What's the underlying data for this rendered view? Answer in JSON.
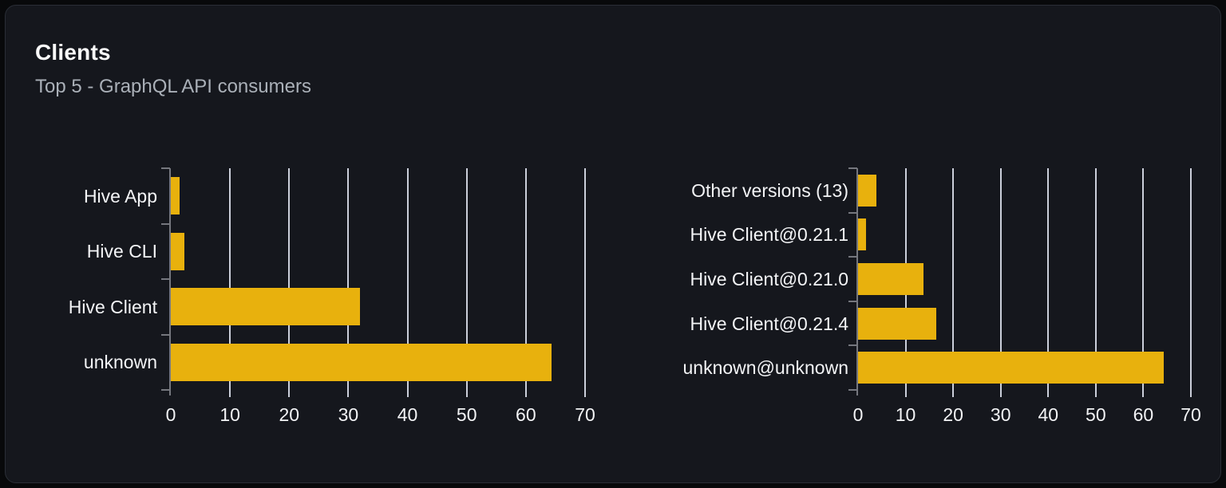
{
  "card": {
    "title": "Clients",
    "subtitle": "Top 5 - GraphQL API consumers"
  },
  "colors": {
    "page_background": "#08090b",
    "card_background": "#15171d",
    "card_border": "#2a2e36",
    "bar": "#e8b10d",
    "gridline": "#dbe0ea",
    "axis": "#75777e",
    "label_text": "#f3f4f6",
    "title_text": "#fafafa",
    "subtitle_text": "#aab0b8"
  },
  "chart_data": [
    {
      "type": "bar",
      "orientation": "horizontal",
      "name": "clients-by-name",
      "categories": [
        "Hive App",
        "Hive CLI",
        "Hive Client",
        "unknown"
      ],
      "values": [
        1.5,
        2.3,
        32,
        64.4
      ],
      "xlim": [
        0,
        70
      ],
      "xticks": [
        0,
        10,
        20,
        30,
        40,
        50,
        60,
        70
      ],
      "grid": true,
      "legend": false,
      "xlabel": "",
      "ylabel": ""
    },
    {
      "type": "bar",
      "orientation": "horizontal",
      "name": "clients-by-version",
      "categories": [
        "Other versions (13)",
        "Hive Client@0.21.1",
        "Hive Client@0.21.0",
        "Hive Client@0.21.4",
        "unknown@unknown"
      ],
      "values": [
        3.9,
        1.7,
        13.8,
        16.5,
        64.3
      ],
      "xlim": [
        0,
        70
      ],
      "xticks": [
        0,
        10,
        20,
        30,
        40,
        50,
        60,
        70
      ],
      "grid": true,
      "legend": false,
      "xlabel": "",
      "ylabel": ""
    }
  ]
}
